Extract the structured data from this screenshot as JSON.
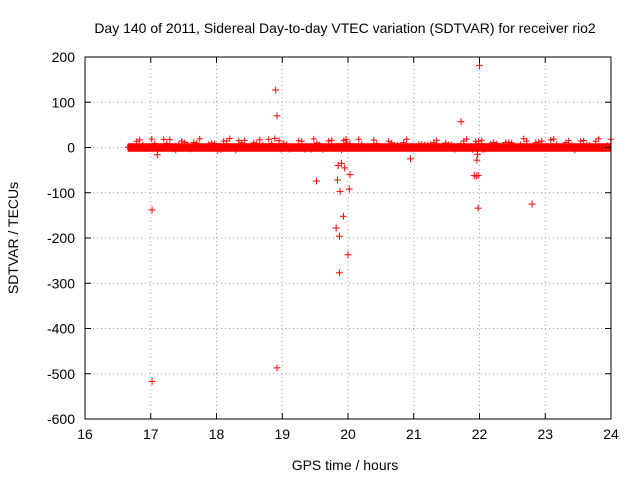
{
  "chart_data": {
    "type": "scatter",
    "title": "Day 140 of 2011, Sidereal Day-to-day VTEC variation (SDTVAR) for receiver rio2",
    "xlabel": "GPS time / hours",
    "ylabel": "SDTVAR / TECUs",
    "xlim": [
      16,
      24
    ],
    "ylim": [
      -600,
      200
    ],
    "xticks": [
      16,
      17,
      18,
      19,
      20,
      21,
      22,
      23,
      24
    ],
    "yticks": [
      -600,
      -500,
      -400,
      -300,
      -200,
      -100,
      0,
      100,
      200
    ],
    "grid": true,
    "marker": "+",
    "color": "#ff0000",
    "band": {
      "x_start": 16.65,
      "x_end": 24.0,
      "y_min": -5,
      "y_max": 5
    },
    "points": [
      {
        "x": 17.02,
        "y": -517
      },
      {
        "x": 17.02,
        "y": -138
      },
      {
        "x": 17.1,
        "y": -16
      },
      {
        "x": 18.9,
        "y": 127
      },
      {
        "x": 18.92,
        "y": 70
      },
      {
        "x": 18.95,
        "y": 15
      },
      {
        "x": 18.92,
        "y": -487
      },
      {
        "x": 19.52,
        "y": -74
      },
      {
        "x": 19.82,
        "y": -178
      },
      {
        "x": 19.84,
        "y": -72
      },
      {
        "x": 19.85,
        "y": -40
      },
      {
        "x": 19.87,
        "y": -196
      },
      {
        "x": 19.87,
        "y": -277
      },
      {
        "x": 19.88,
        "y": -97
      },
      {
        "x": 19.9,
        "y": -35
      },
      {
        "x": 19.9,
        "y": -5
      },
      {
        "x": 19.93,
        "y": -152
      },
      {
        "x": 19.95,
        "y": -45
      },
      {
        "x": 19.97,
        "y": 18
      },
      {
        "x": 20.0,
        "y": -237
      },
      {
        "x": 20.02,
        "y": -92
      },
      {
        "x": 20.03,
        "y": -60
      },
      {
        "x": 20.03,
        "y": 8
      },
      {
        "x": 20.95,
        "y": -25
      },
      {
        "x": 21.72,
        "y": 57
      },
      {
        "x": 21.92,
        "y": -62
      },
      {
        "x": 21.95,
        "y": -63
      },
      {
        "x": 21.96,
        "y": -28
      },
      {
        "x": 21.97,
        "y": -15
      },
      {
        "x": 21.98,
        "y": -134
      },
      {
        "x": 21.98,
        "y": -62
      },
      {
        "x": 22.0,
        "y": 181
      },
      {
        "x": 22.0,
        "y": 2
      },
      {
        "x": 22.03,
        "y": 8
      },
      {
        "x": 22.8,
        "y": -125
      }
    ]
  }
}
